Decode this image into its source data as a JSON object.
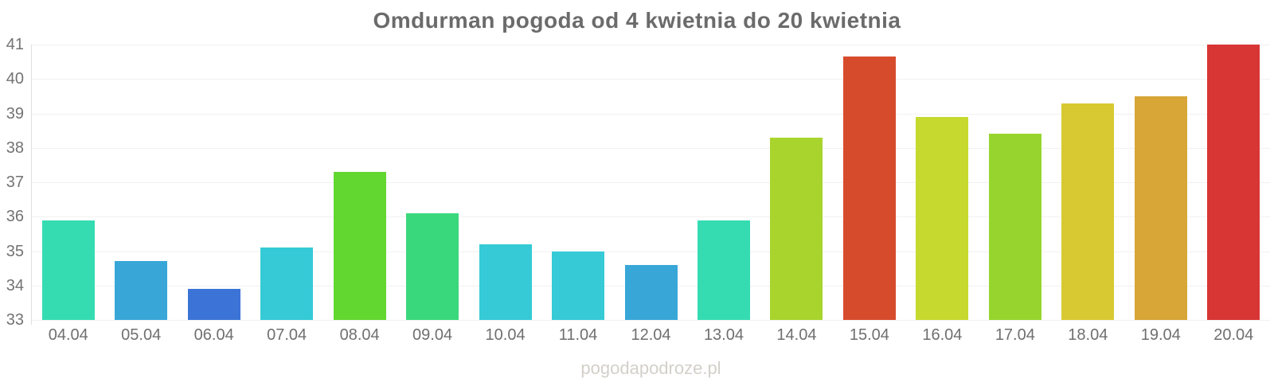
{
  "chart_data": {
    "type": "bar",
    "title": "Omdurman pogoda od 4 kwietnia do 20 kwietnia",
    "xlabel": "",
    "ylabel": "",
    "categories": [
      "04.04",
      "05.04",
      "06.04",
      "07.04",
      "08.04",
      "09.04",
      "10.04",
      "11.04",
      "12.04",
      "13.04",
      "14.04",
      "15.04",
      "16.04",
      "17.04",
      "18.04",
      "19.04",
      "20.04"
    ],
    "values": [
      35.9,
      34.7,
      33.9,
      35.1,
      37.3,
      36.1,
      35.2,
      35.0,
      34.6,
      35.9,
      38.3,
      40.65,
      38.9,
      38.4,
      39.3,
      39.5,
      41.0
    ],
    "bar_colors": [
      "#35dcb2",
      "#38a7d8",
      "#3b74d6",
      "#35cad6",
      "#62d730",
      "#3ad87c",
      "#35cad6",
      "#35cad6",
      "#38a7d8",
      "#35dcb2",
      "#a8d42d",
      "#d74b2d",
      "#c6d92e",
      "#97d52e",
      "#d8c932",
      "#d7a637",
      "#d83535"
    ],
    "ylim": [
      33,
      41
    ],
    "yticks": [
      33,
      34,
      35,
      36,
      37,
      38,
      39,
      40,
      41
    ],
    "grid": true,
    "legend_position": "none"
  },
  "style_colors": {
    "title_text": "#6b6b6b",
    "axis_label_text": "#717171",
    "gridline": "#f1f1f1",
    "axis_line": "#dedede",
    "watermark_text": "#d3d0ca"
  },
  "watermark": {
    "text": "pogodapodroze.pl"
  }
}
